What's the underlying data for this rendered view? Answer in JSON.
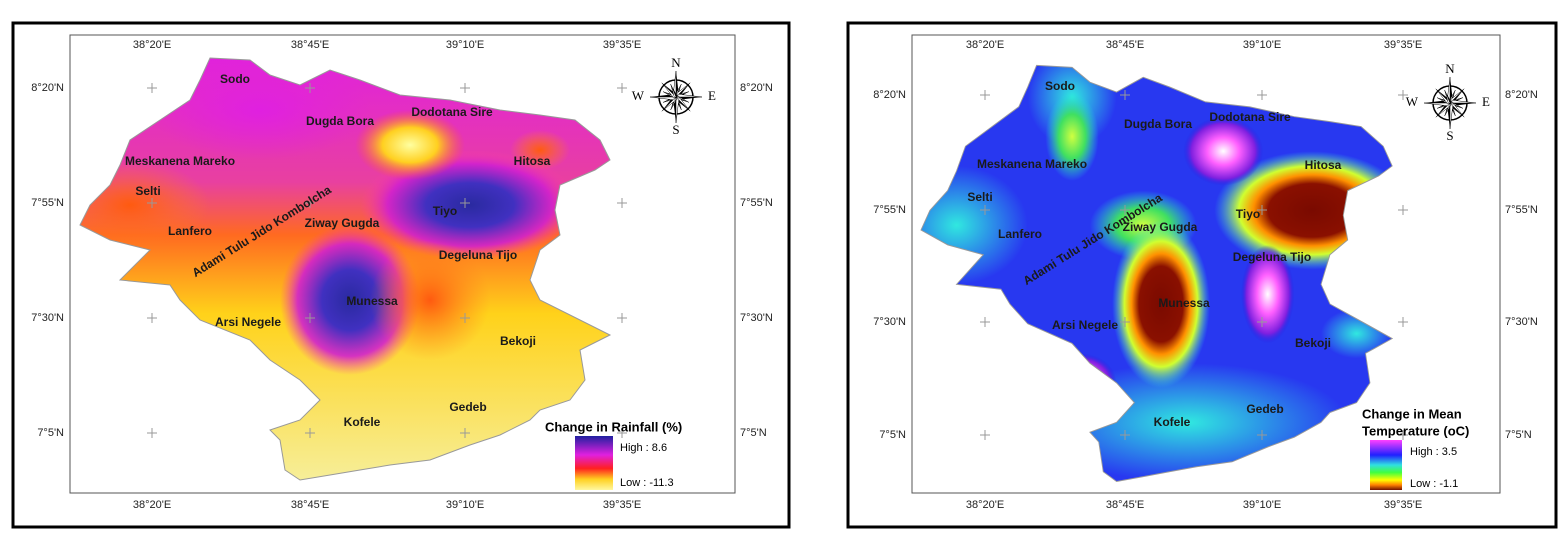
{
  "maps": [
    {
      "lon_labels": [
        "38°20'E",
        "38°45'E",
        "39°10'E",
        "39°35'E"
      ],
      "lat_labels": [
        "8°20'N",
        "7°55'N",
        "7°30'N",
        "7°5'N"
      ],
      "places": [
        "Sodo",
        "Dugda Bora",
        "Dodotana Sire",
        "Meskanena Mareko",
        "Hitosa",
        "Selti",
        "Tiyo",
        "Lanfero",
        "Ziway Gugda",
        "Adami Tulu Jido Kombolcha",
        "Degeluna Tijo",
        "Munessa",
        "Arsi Negele",
        "Bekoji",
        "Kofele",
        "Gedeb"
      ],
      "compass": {
        "n": "N",
        "s": "S",
        "e": "E",
        "w": "W"
      },
      "legend": {
        "title": [
          "Change in Rainfall (%)"
        ],
        "high": "High : 8.6",
        "low": "Low : -11.3"
      }
    },
    {
      "lon_labels": [
        "38°20'E",
        "38°45'E",
        "39°10'E",
        "39°35'E"
      ],
      "lat_labels": [
        "8°20'N",
        "7°55'N",
        "7°30'N",
        "7°5'N"
      ],
      "places": [
        "Sodo",
        "Dugda Bora",
        "Dodotana Sire",
        "Meskanena Mareko",
        "Hitosa",
        "Selti",
        "Tiyo",
        "Lanfero",
        "Ziway Gugda",
        "Adami Tulu Jido Kombolcha",
        "Degeluna Tijo",
        "Munessa",
        "Arsi Negele",
        "Bekoji",
        "Kofele",
        "Gedeb"
      ],
      "compass": {
        "n": "N",
        "s": "S",
        "e": "E",
        "w": "W"
      },
      "legend": {
        "title": [
          "Change in Mean",
          "Temperature (oC)"
        ],
        "high": "High : 3.5",
        "low": "Low : -1.1"
      }
    }
  ]
}
